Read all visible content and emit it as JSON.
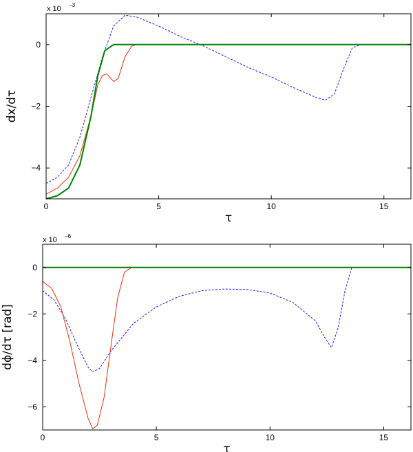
{
  "chart_data": [
    {
      "type": "line",
      "xlabel": "τ",
      "ylabel": "dx/dτ",
      "scale_note": {
        "base": "x 10",
        "exponent": "−3"
      },
      "xlim": [
        0,
        16.2
      ],
      "ylim": [
        -5.0,
        1.0
      ],
      "xticks": [
        0,
        5,
        10,
        15
      ],
      "yticks": [
        -4,
        -2,
        0
      ],
      "series": [
        {
          "color": "#1a1aff",
          "style": "dashed",
          "width": 1,
          "points": [
            [
              0,
              -4.5
            ],
            [
              0.5,
              -4.3
            ],
            [
              1.0,
              -3.9
            ],
            [
              1.5,
              -3.0
            ],
            [
              2.0,
              -1.7
            ],
            [
              2.5,
              -0.4
            ],
            [
              3.0,
              0.6
            ],
            [
              3.5,
              0.95
            ],
            [
              4.0,
              0.9
            ],
            [
              5.0,
              0.6
            ],
            [
              6.0,
              0.25
            ],
            [
              7.0,
              -0.05
            ],
            [
              8.0,
              -0.4
            ],
            [
              9.0,
              -0.75
            ],
            [
              10.0,
              -1.05
            ],
            [
              11.0,
              -1.4
            ],
            [
              12.0,
              -1.72
            ],
            [
              12.4,
              -1.8
            ],
            [
              12.8,
              -1.6
            ],
            [
              13.2,
              -0.8
            ],
            [
              13.6,
              -0.1
            ],
            [
              14.0,
              0.0
            ],
            [
              16.2,
              0.0
            ]
          ]
        },
        {
          "color": "#dd3311",
          "style": "solid",
          "width": 1,
          "points": [
            [
              0,
              -4.85
            ],
            [
              0.5,
              -4.65
            ],
            [
              1.0,
              -4.3
            ],
            [
              1.5,
              -3.6
            ],
            [
              2.0,
              -2.3
            ],
            [
              2.3,
              -1.3
            ],
            [
              2.5,
              -1.0
            ],
            [
              2.7,
              -0.95
            ],
            [
              3.0,
              -1.2
            ],
            [
              3.2,
              -1.1
            ],
            [
              3.5,
              -0.4
            ],
            [
              3.8,
              -0.05
            ],
            [
              4.0,
              0.0
            ],
            [
              16.2,
              0.0
            ]
          ]
        },
        {
          "color": "#008000",
          "style": "solid",
          "width": 2,
          "points": [
            [
              0,
              -5.0
            ],
            [
              0.5,
              -4.9
            ],
            [
              1.0,
              -4.65
            ],
            [
              1.5,
              -3.9
            ],
            [
              2.0,
              -2.3
            ],
            [
              2.3,
              -1.0
            ],
            [
              2.6,
              -0.2
            ],
            [
              3.0,
              0.0
            ],
            [
              16.2,
              0.0
            ]
          ]
        }
      ]
    },
    {
      "type": "line",
      "xlabel": "τ",
      "ylabel": "dϕ/dτ [rad]",
      "scale_note": {
        "base": "x 10",
        "exponent": "−6"
      },
      "xlim": [
        0,
        16.2
      ],
      "ylim": [
        -7.0,
        1.0
      ],
      "xticks": [
        0,
        5,
        10,
        15
      ],
      "yticks": [
        -6,
        -4,
        -2,
        0
      ],
      "series": [
        {
          "color": "#1a1aff",
          "style": "dashed",
          "width": 1,
          "points": [
            [
              0,
              -1.0
            ],
            [
              0.5,
              -1.4
            ],
            [
              1.0,
              -2.2
            ],
            [
              1.5,
              -3.3
            ],
            [
              2.0,
              -4.3
            ],
            [
              2.2,
              -4.5
            ],
            [
              2.5,
              -4.35
            ],
            [
              3.0,
              -3.6
            ],
            [
              4.0,
              -2.4
            ],
            [
              5.0,
              -1.7
            ],
            [
              6.0,
              -1.25
            ],
            [
              7.0,
              -1.0
            ],
            [
              8.0,
              -0.93
            ],
            [
              9.0,
              -0.95
            ],
            [
              10.0,
              -1.1
            ],
            [
              11.0,
              -1.5
            ],
            [
              12.0,
              -2.3
            ],
            [
              12.4,
              -3.0
            ],
            [
              12.7,
              -3.45
            ],
            [
              13.0,
              -2.6
            ],
            [
              13.3,
              -1.0
            ],
            [
              13.6,
              0.0
            ],
            [
              16.2,
              0.0
            ]
          ]
        },
        {
          "color": "#dd3311",
          "style": "solid",
          "width": 1,
          "points": [
            [
              0,
              -0.6
            ],
            [
              0.4,
              -0.9
            ],
            [
              0.8,
              -1.7
            ],
            [
              1.2,
              -3.2
            ],
            [
              1.6,
              -5.0
            ],
            [
              2.0,
              -6.5
            ],
            [
              2.2,
              -6.95
            ],
            [
              2.4,
              -6.8
            ],
            [
              2.7,
              -5.6
            ],
            [
              3.0,
              -3.4
            ],
            [
              3.3,
              -1.3
            ],
            [
              3.6,
              -0.2
            ],
            [
              3.9,
              0.0
            ],
            [
              16.2,
              0.0
            ]
          ]
        },
        {
          "color": "#008000",
          "style": "solid",
          "width": 2,
          "points": [
            [
              0,
              0.0
            ],
            [
              16.2,
              0.0
            ]
          ]
        }
      ]
    }
  ]
}
